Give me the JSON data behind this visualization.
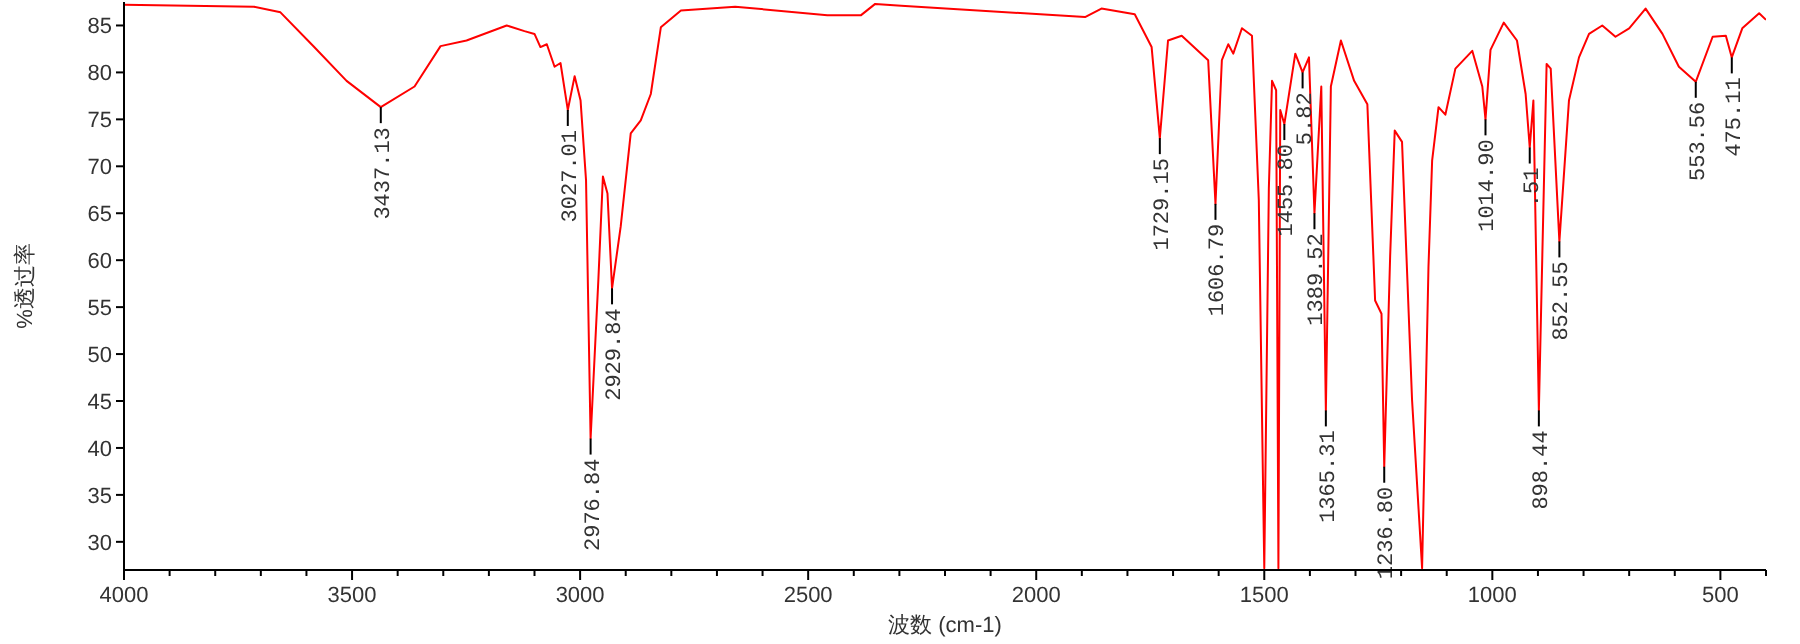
{
  "chart_data": {
    "type": "line",
    "xlabel": "波数 (cm-1)",
    "ylabel": "%透过率",
    "xlim": [
      4000,
      400
    ],
    "ylim": [
      27,
      87.5
    ],
    "xticks": [
      4000,
      {
        "value": 3900,
        "label": null
      },
      {
        "value": 3800,
        "label": null
      },
      {
        "value": 3700,
        "label": null
      },
      {
        "value": 3600,
        "label": null
      },
      3500,
      {
        "value": 3400,
        "label": null
      },
      {
        "value": 3300,
        "label": null
      },
      {
        "value": 3200,
        "label": null
      },
      {
        "value": 3100,
        "label": null
      },
      3000,
      {
        "value": 2900,
        "label": null
      },
      {
        "value": 2800,
        "label": null
      },
      {
        "value": 2700,
        "label": null
      },
      {
        "value": 2600,
        "label": null
      },
      2500,
      {
        "value": 2400,
        "label": null
      },
      {
        "value": 2300,
        "label": null
      },
      {
        "value": 2200,
        "label": null
      },
      {
        "value": 2100,
        "label": null
      },
      2000,
      {
        "value": 1900,
        "label": null
      },
      {
        "value": 1800,
        "label": null
      },
      {
        "value": 1700,
        "label": null
      },
      {
        "value": 1600,
        "label": null
      },
      1500,
      {
        "value": 1400,
        "label": null
      },
      {
        "value": 1300,
        "label": null
      },
      {
        "value": 1200,
        "label": null
      },
      {
        "value": 1100,
        "label": null
      },
      1000,
      {
        "value": 900,
        "label": null
      },
      {
        "value": 800,
        "label": null
      },
      {
        "value": 700,
        "label": null
      },
      {
        "value": 600,
        "label": null
      },
      500,
      {
        "value": 400,
        "label": null
      }
    ],
    "yticks": [
      30,
      35,
      40,
      45,
      50,
      55,
      60,
      65,
      70,
      75,
      80,
      85
    ],
    "grid": false,
    "marker": "none",
    "line_style": "solid",
    "series": [
      {
        "color": "#ff0000",
        "x": [
          4000,
          3715,
          3657,
          3583,
          3512,
          3437,
          3363,
          3306,
          3249,
          3161,
          3122,
          3100,
          3087,
          3073,
          3056,
          3043,
          3027,
          3012,
          2999,
          2987,
          2977,
          2960,
          2950,
          2940,
          2930,
          2911,
          2889,
          2867,
          2845,
          2823,
          2779,
          2660,
          2458,
          2384,
          2353,
          2296,
          1893,
          1857,
          1784,
          1747,
          1729,
          1711,
          1681,
          1623,
          1607,
          1593,
          1579,
          1568,
          1549,
          1527,
          1512,
          1500,
          1490,
          1483,
          1474,
          1469,
          1465,
          1456,
          1432,
          1416,
          1402,
          1390,
          1375,
          1365,
          1354,
          1332,
          1303,
          1274,
          1257,
          1243,
          1237,
          1224,
          1214,
          1198,
          1176,
          1154,
          1140,
          1132,
          1118,
          1103,
          1081,
          1044,
          1022,
          1015,
          1004,
          975,
          946,
          927,
          918,
          910,
          898,
          881,
          872,
          853,
          832,
          810,
          788,
          759,
          730,
          700,
          664,
          627,
          591,
          554,
          517,
          488,
          475,
          452,
          415,
          400
        ],
        "values": [
          87.2,
          87,
          86.4,
          82.7,
          79.1,
          76.3,
          78.5,
          82.8,
          83.4,
          85,
          84.4,
          84.1,
          82.7,
          83,
          80.6,
          81,
          76,
          79.6,
          77,
          68.5,
          41,
          57.9,
          68.9,
          67.1,
          57,
          63.6,
          73.5,
          74.9,
          77.7,
          84.8,
          86.6,
          87,
          86.1,
          86.1,
          87.3,
          87.1,
          85.9,
          86.8,
          86.2,
          82.7,
          73,
          83.4,
          83.9,
          81.3,
          66,
          81.3,
          83,
          82,
          84.7,
          83.9,
          66.4,
          27.2,
          67.6,
          79.1,
          78.1,
          27.2,
          76,
          74.5,
          82,
          80,
          81.6,
          65,
          78.5,
          44,
          78.5,
          83.4,
          79.1,
          76.6,
          55.7,
          54.3,
          38,
          60.5,
          73.8,
          72.6,
          45.1,
          27.2,
          59.3,
          70.6,
          76.3,
          75.5,
          80.4,
          82.3,
          78.5,
          75,
          82.4,
          85.3,
          83.4,
          77.7,
          72,
          77,
          44,
          80.9,
          80.4,
          62,
          77,
          81.6,
          84.1,
          85,
          83.8,
          84.7,
          86.8,
          84.1,
          80.6,
          79,
          83.8,
          83.9,
          81.6,
          84.7,
          86.3,
          85.6
        ]
      }
    ],
    "annotations": [
      {
        "text": "3437.13",
        "x": 3437,
        "y": 76.3
      },
      {
        "text": "3027.01",
        "x": 3027,
        "y": 76
      },
      {
        "text": "2976.84",
        "x": 2977,
        "y": 41
      },
      {
        "text": "2929.84",
        "x": 2930,
        "y": 57
      },
      {
        "text": "1729.15",
        "x": 1729,
        "y": 73
      },
      {
        "text": "1606.79",
        "x": 1607,
        "y": 66
      },
      {
        "text": "1455.80",
        "x": 1456,
        "y": 74.5
      },
      {
        "text": "5.82",
        "x": 1416,
        "y": 80
      },
      {
        "text": "1389.52",
        "x": 1390,
        "y": 65
      },
      {
        "text": "1365.31",
        "x": 1365,
        "y": 44
      },
      {
        "text": "1236.80",
        "x": 1237,
        "y": 38
      },
      {
        "text": "1014.90",
        "x": 1015,
        "y": 75
      },
      {
        "text": ".51",
        "x": 918,
        "y": 72
      },
      {
        "text": "898.44",
        "x": 898,
        "y": 44
      },
      {
        "text": "852.55",
        "x": 853,
        "y": 62
      },
      {
        "text": "553.56",
        "x": 554,
        "y": 79
      },
      {
        "text": "475.11",
        "x": 475,
        "y": 81.6
      }
    ]
  }
}
